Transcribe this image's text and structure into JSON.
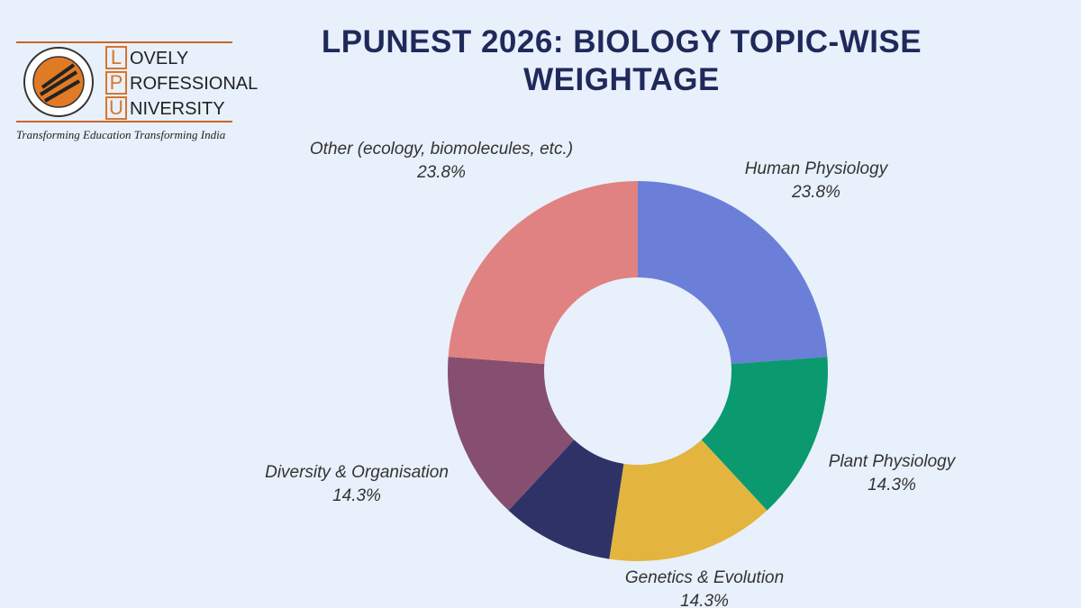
{
  "logo": {
    "letters": [
      "L",
      "P",
      "U"
    ],
    "words": [
      "OVELY",
      "ROFESSIONAL",
      "NIVERSITY"
    ],
    "tagline": "Transforming Education Transforming India"
  },
  "chart_data": {
    "type": "donut",
    "title": "LPUNEST 2026: BIOLOGY TOPIC-WISE WEIGHTAGE",
    "categories": [
      "Human Physiology",
      "Plant Physiology",
      "Genetics & Evolution",
      null,
      "Diversity & Organisation",
      "Other (ecology, biomolecules, etc.)"
    ],
    "values": [
      23.8,
      14.3,
      14.3,
      9.5,
      14.3,
      23.8
    ],
    "value_labels": [
      "23.8%",
      "14.3%",
      "14.3%",
      null,
      "14.3%",
      "23.8%"
    ],
    "colors": [
      "#6b7fd8",
      "#0b9a70",
      "#e3b53f",
      "#2e3267",
      "#864f70",
      "#e08281"
    ]
  }
}
